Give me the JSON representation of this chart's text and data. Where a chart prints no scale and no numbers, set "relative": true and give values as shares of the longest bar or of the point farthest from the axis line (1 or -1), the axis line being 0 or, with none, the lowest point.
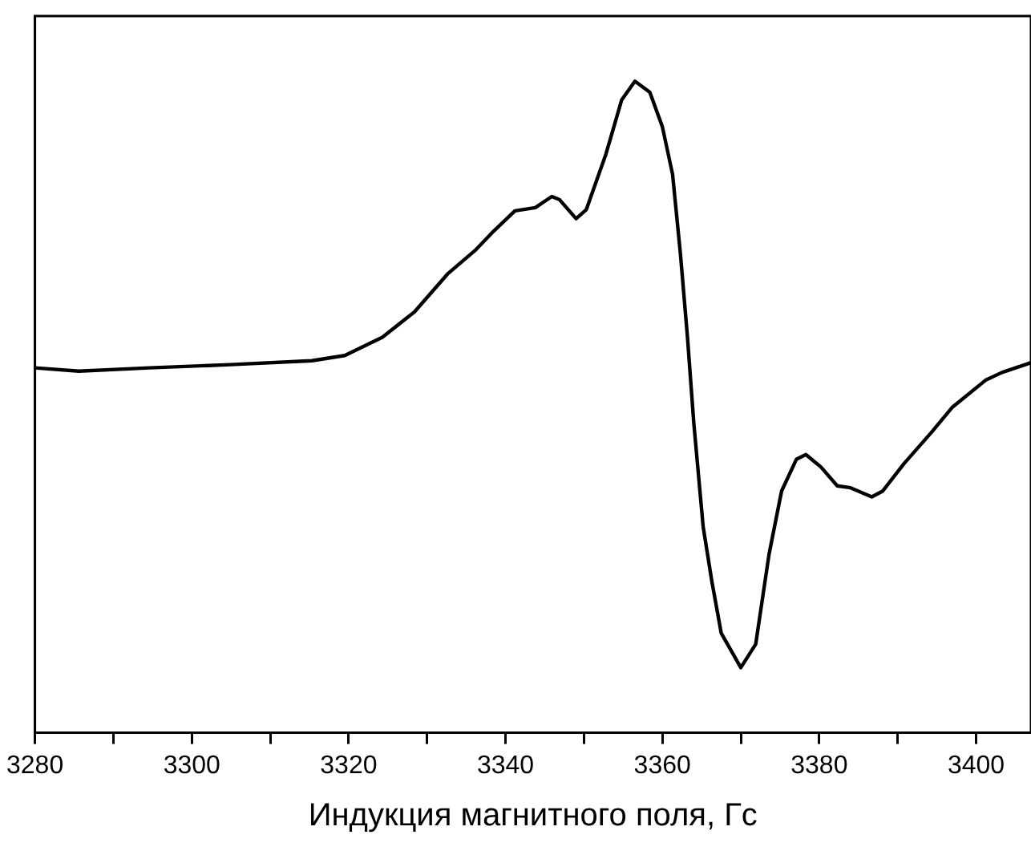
{
  "chart_data": {
    "type": "line",
    "xlabel": "Индукция магнитного поля, Гс",
    "relative": true,
    "tick_labels": "x",
    "grid": false,
    "legend": false,
    "marker": "none",
    "line_style": "solid",
    "xlim": [
      3280,
      3407
    ],
    "xticks": [
      3280,
      {
        "value": 3290,
        "label": null
      },
      3300,
      {
        "value": 3310,
        "label": null
      },
      3320,
      {
        "value": 3330,
        "label": null
      },
      3340,
      {
        "value": 3350,
        "label": null
      },
      3360,
      {
        "value": 3370,
        "label": null
      },
      3380,
      {
        "value": 3390,
        "label": null
      },
      3400
    ],
    "series": [
      {
        "color": "#000000",
        "x": [
          3280,
          3285.6,
          3294.6,
          3304.9,
          3315.3,
          3319.5,
          3324.3,
          3328.4,
          3332.6,
          3336.1,
          3338.5,
          3341.2,
          3343.8,
          3345.9,
          3346.9,
          3349,
          3350.3,
          3352.8,
          3354.8,
          3356.5,
          3358.4,
          3360,
          3361.3,
          3362.3,
          3363.2,
          3364,
          3365.2,
          3366.3,
          3367.5,
          3370,
          3371.9,
          3373.6,
          3375.2,
          3377.1,
          3378.3,
          3380.2,
          3382.3,
          3384,
          3386.7,
          3388.1,
          3390.8,
          3394.3,
          3397,
          3401.2,
          3403.3,
          3407
        ],
        "values": [
          0.56,
          0.555,
          0.56,
          0.565,
          0.571,
          0.579,
          0.607,
          0.646,
          0.704,
          0.74,
          0.77,
          0.801,
          0.806,
          0.823,
          0.818,
          0.789,
          0.803,
          0.888,
          0.971,
          1,
          0.983,
          0.93,
          0.857,
          0.735,
          0.607,
          0.476,
          0.316,
          0.233,
          0.153,
          0.1,
          0.136,
          0.274,
          0.371,
          0.42,
          0.427,
          0.408,
          0.379,
          0.376,
          0.362,
          0.371,
          0.413,
          0.461,
          0.5,
          0.541,
          0.553,
          0.568
        ]
      }
    ]
  }
}
